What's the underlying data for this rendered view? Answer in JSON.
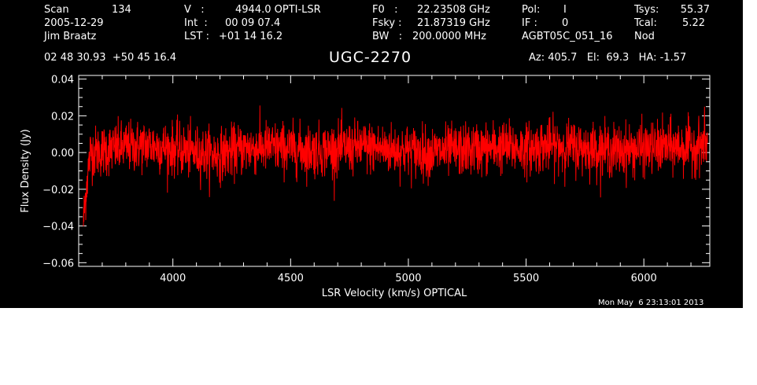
{
  "header": {
    "row1": {
      "scan_label": "Scan",
      "scan_value": "134",
      "v_label": "V   :",
      "v_value": "4944.0 OPTI-LSR",
      "f0_label": "F0   :",
      "f0_value": "22.23508 GHz",
      "pol_label": "Pol:",
      "pol_value": "I",
      "tsys_label": "Tsys:",
      "tsys_value": "55.37"
    },
    "row2": {
      "date": "2005-12-29",
      "int_label": "Int  :",
      "int_value": "00 09 07.4",
      "fsky_label": "Fsky :",
      "fsky_value": "21.87319 GHz",
      "if_label": "IF :",
      "if_value": "0",
      "tcal_label": "Tcal:",
      "tcal_value": "5.22"
    },
    "row3": {
      "observer": "Jim Braatz",
      "lst_label": "LST :",
      "lst_value": "+01 14 16.2",
      "bw_label": "BW   :",
      "bw_value": "200.0000 MHz",
      "project": "AGBT05C_051_16",
      "procedure": "Nod"
    },
    "row4": {
      "coords": "02 48 30.93  +50 45 16.4",
      "source": "UGC-2270",
      "az_el_ha": "Az: 405.7   El:  69.3   HA: -1.57"
    }
  },
  "timestamp": "Mon May  6 23:13:01 2013",
  "colors": {
    "background": "#000000",
    "trace": "#ff0000",
    "axes": "#ffffff"
  },
  "chart_data": {
    "type": "line",
    "xlabel": "LSR Velocity (km/s) OPTICAL",
    "ylabel": "Flux Density (Jy)",
    "xlim": [
      3600,
      6280
    ],
    "ylim": [
      -0.062,
      0.042
    ],
    "x_ticks": [
      4000,
      4500,
      5000,
      5500,
      6000
    ],
    "y_ticks": [
      0.04,
      0.02,
      0.0,
      -0.02,
      -0.04,
      -0.06
    ],
    "x_tick_labels": [
      "4000",
      "4500",
      "5000",
      "5500",
      "6000"
    ],
    "y_tick_labels": [
      "0.04",
      "0.02",
      "0.00",
      "−0.02",
      "−0.04",
      "−0.06"
    ],
    "grid": false,
    "series": [
      {
        "x": [
          3620,
          3635,
          3650,
          3700,
          3800,
          3900,
          4000,
          4100,
          4200,
          4300,
          4400,
          4500,
          4600,
          4700,
          4800,
          4900,
          5000,
          5100,
          5200,
          5300,
          5400,
          5500,
          5600,
          5700,
          5800,
          5900,
          6000,
          6100,
          6200,
          6270
        ],
        "y": [
          -0.038,
          -0.015,
          0.0,
          0.001,
          0.003,
          0.004,
          0.002,
          0.0,
          -0.001,
          0.002,
          0.003,
          0.002,
          0.001,
          0.002,
          0.003,
          0.002,
          0.001,
          0.0,
          0.001,
          0.002,
          0.003,
          0.002,
          0.004,
          0.003,
          0.002,
          0.001,
          0.002,
          0.003,
          0.003,
          0.005
        ],
        "noise_rms": 0.007
      }
    ]
  }
}
